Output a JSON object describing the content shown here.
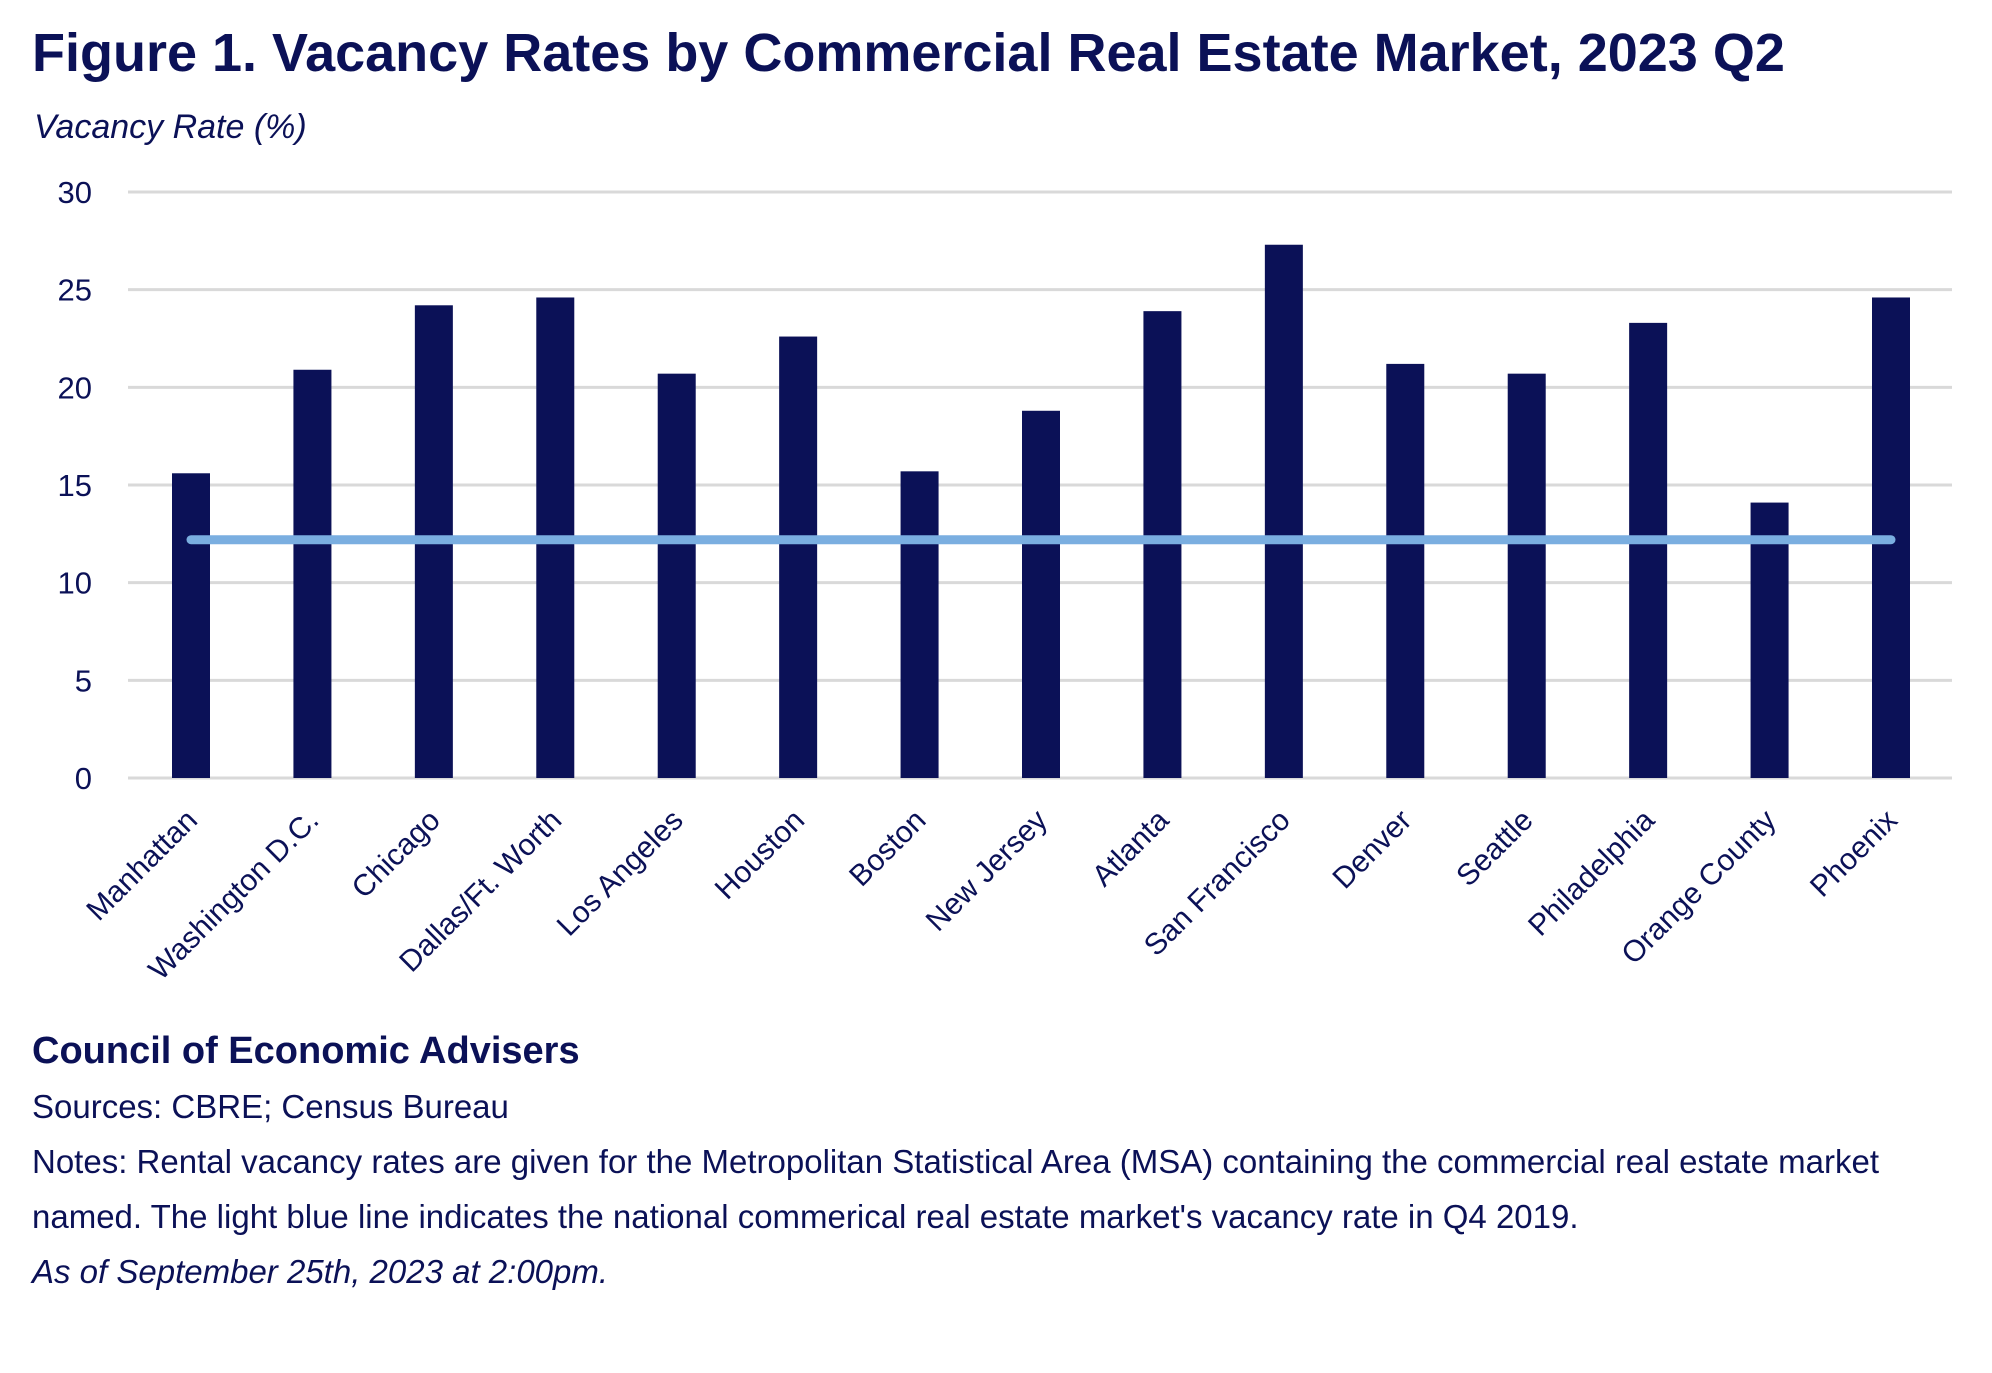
{
  "chart_data": {
    "type": "bar",
    "title": "Figure 1. Vacancy Rates by Commercial Real Estate Market, 2023 Q2",
    "ylabel": "Vacancy Rate (%)",
    "xlabel": "",
    "ylim": [
      0,
      30
    ],
    "yticks": [
      0,
      5,
      10,
      15,
      20,
      25,
      30
    ],
    "grid": true,
    "categories": [
      "Manhattan",
      "Washington D.C.",
      "Chicago",
      "Dallas/Ft. Worth",
      "Los Angeles",
      "Houston",
      "Boston",
      "New Jersey",
      "Atlanta",
      "San Francisco",
      "Denver",
      "Seattle",
      "Philadelphia",
      "Orange County",
      "Phoenix"
    ],
    "series": [
      {
        "name": "Vacancy Rate 2023 Q2",
        "type": "bar",
        "color": "#0b1157",
        "values": [
          15.6,
          20.9,
          24.2,
          24.6,
          20.7,
          22.6,
          15.7,
          18.8,
          23.9,
          27.3,
          21.2,
          20.7,
          23.3,
          14.1,
          24.6
        ]
      },
      {
        "name": "National vacancy rate Q4 2019",
        "type": "line",
        "color": "#7aaee0",
        "value": 12.2
      }
    ]
  },
  "footer": {
    "org": "Council of Economic Advisers",
    "sources": "Sources: CBRE; Census Bureau",
    "notes": "Notes: Rental vacancy rates are given for the Metropolitan Statistical Area (MSA) containing the commercial real estate market named. The light blue line indicates the national commerical real estate market's vacancy rate in Q4 2019.",
    "as_of": "As of September 25th, 2023 at 2:00pm."
  }
}
